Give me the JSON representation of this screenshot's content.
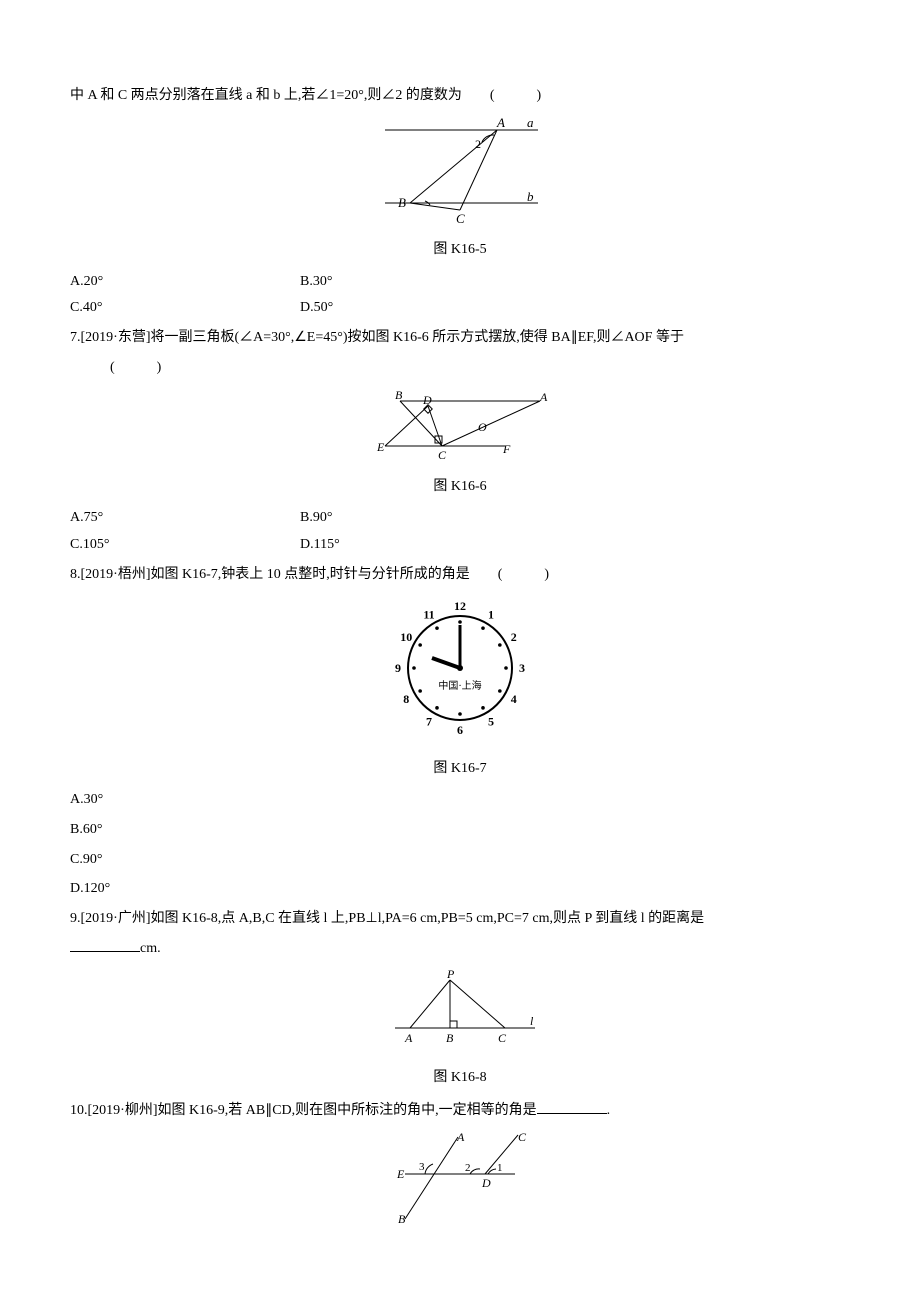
{
  "q6": {
    "continued_text": "中 A 和 C 两点分别落在直线 a 和 b 上,若∠1=20°,则∠2 的度数为　　(　　　)",
    "figure_caption": "图 K16-5",
    "figure": {
      "labels": {
        "A": "A",
        "a": "a",
        "B": "B",
        "C": "C",
        "b": "b",
        "ang2": "2"
      },
      "colors": {
        "stroke": "#000000",
        "fill": "none"
      }
    },
    "options": {
      "A": "A.20°",
      "B": "B.30°",
      "C": "C.40°",
      "D": "D.50°"
    }
  },
  "q7": {
    "stem": "7.[2019·东营]将一副三角板(∠A=30°,∠E=45°)按如图 K16-6 所示方式摆放,使得 BA∥EF,则∠AOF 等于",
    "paren": "(　　　)",
    "figure_caption": "图 K16-6",
    "figure": {
      "labels": {
        "B": "B",
        "D": "D",
        "A": "A",
        "E": "E",
        "C": "C",
        "O": "O",
        "F": "F"
      },
      "colors": {
        "stroke": "#000000"
      }
    },
    "options": {
      "A": "A.75°",
      "B": "B.90°",
      "C": "C.105°",
      "D": "D.115°"
    }
  },
  "q8": {
    "stem": "8.[2019·梧州]如图 K16-7,钟表上 10 点整时,时针与分针所成的角是　　(　　　)",
    "figure_caption": "图 K16-7",
    "figure": {
      "numbers": [
        "12",
        "1",
        "2",
        "3",
        "4",
        "5",
        "6",
        "7",
        "8",
        "9",
        "10",
        "11"
      ],
      "center_text": "中国·上海",
      "colors": {
        "stroke": "#000000",
        "fill": "#ffffff"
      }
    },
    "options": {
      "A": "A.30°",
      "B": "B.60°",
      "C": "C.90°",
      "D": "D.120°"
    }
  },
  "q9": {
    "stem": "9.[2019·广州]如图 K16-8,点 A,B,C 在直线 l 上,PB⊥l,PA=6 cm,PB=5 cm,PC=7 cm,则点 P 到直线 l 的距离是",
    "unit": "cm.",
    "figure_caption": "图 K16-8",
    "figure": {
      "labels": {
        "P": "P",
        "A": "A",
        "B": "B",
        "C": "C",
        "l": "l"
      },
      "colors": {
        "stroke": "#000000"
      }
    }
  },
  "q10": {
    "stem": "10.[2019·柳州]如图 K16-9,若 AB∥CD,则在图中所标注的角中,一定相等的角是",
    "period": ".",
    "figure": {
      "labels": {
        "A": "A",
        "C": "C",
        "E": "E",
        "D": "D",
        "B": "B",
        "a3": "3",
        "a2": "2",
        "a1": "1"
      },
      "colors": {
        "stroke": "#000000"
      }
    }
  }
}
